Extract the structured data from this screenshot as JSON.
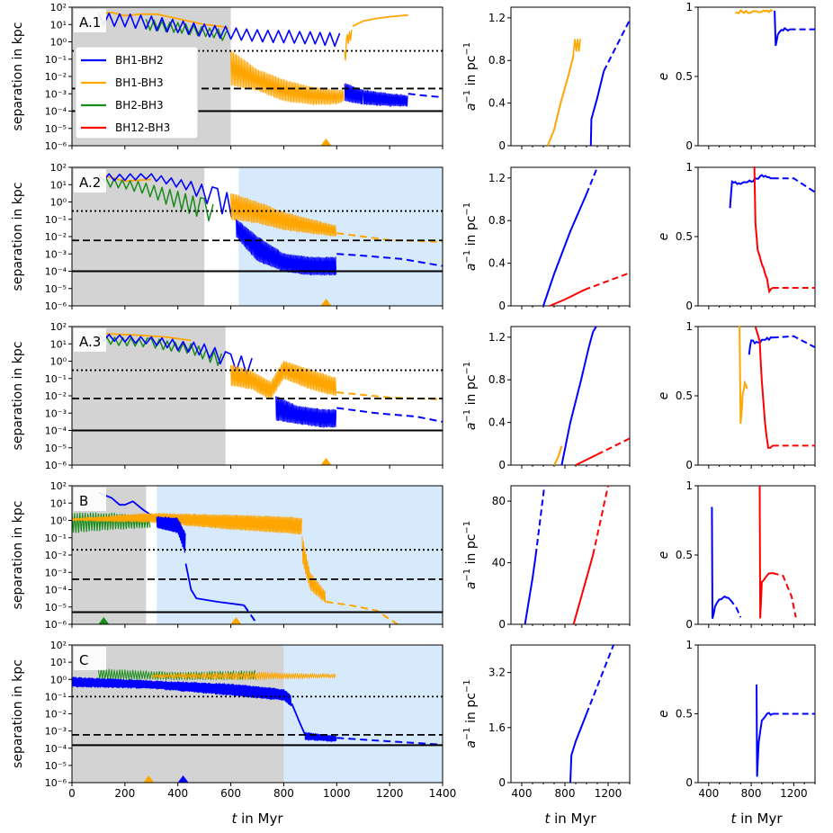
{
  "colors": {
    "BH1-BH2": "#0000ff",
    "BH1-BH3": "#ffa500",
    "BH2-BH3": "#1a8c1a",
    "BH12-BH3": "#ff0000",
    "gray": "#d3d3d3",
    "blue_bg": "#d6eafc"
  },
  "axis_labels": {
    "sep_ylabel": "separation in kpc",
    "a_ylabel_base": "a",
    "a_ylabel_sup": "−1",
    "a_ylabel_tail": " in pc",
    "a_ylabel_tail_sup": "−1",
    "e_ylabel": "e",
    "t_xlabel_italic": "t",
    "t_xlabel_rest": " in Myr"
  },
  "legend": [
    "BH1-BH2",
    "BH1-BH3",
    "BH2-BH3",
    "BH12-BH3"
  ],
  "chart_data": [
    {
      "type": "line",
      "panel": "A.1",
      "xlim": [
        0,
        1400
      ],
      "ylim_log": [
        -6,
        2
      ],
      "shaded_gray": [
        0,
        600
      ],
      "shaded_blue": null,
      "hlines": {
        "dotted": 0.3,
        "dashed": 0.002,
        "solid": 0.0001
      },
      "triangles": [
        {
          "x": 960,
          "color": "BH1-BH3"
        }
      ],
      "a_inv": {
        "ylim": [
          0,
          1.3
        ],
        "yticks": [
          0,
          0.4,
          0.8,
          1.2
        ],
        "series": [
          {
            "name": "BH1-BH3",
            "solid": [
              [
                640,
                0
              ],
              [
                700,
                0.15
              ],
              [
                760,
                0.4
              ],
              [
                830,
                0.65
              ],
              [
                880,
                0.85
              ]
            ],
            "spikes": [
              [
                880,
                0.85
              ],
              [
                890,
                1.0
              ]
            ],
            "dashed": null
          },
          {
            "name": "BH1-BH2",
            "solid": [
              [
                1040,
                0
              ],
              [
                1045,
                0.25
              ],
              [
                1100,
                0.45
              ],
              [
                1160,
                0.7
              ]
            ],
            "dashed": [
              [
                1160,
                0.7
              ],
              [
                1400,
                1.18
              ]
            ]
          }
        ]
      },
      "ecc": {
        "series": [
          {
            "name": "BH1-BH3",
            "solid": [
              [
                650,
                0.95
              ],
              [
                700,
                0.97
              ],
              [
                800,
                0.96
              ],
              [
                880,
                0.97
              ],
              [
                1000,
                0.97
              ]
            ],
            "dashed": null
          },
          {
            "name": "BH1-BH2",
            "solid": [
              [
                1020,
                0.97
              ],
              [
                1030,
                0.72
              ],
              [
                1050,
                0.8
              ],
              [
                1100,
                0.84
              ],
              [
                1160,
                0.84
              ]
            ],
            "dashed": [
              [
                1160,
                0.84
              ],
              [
                1400,
                0.84
              ]
            ]
          }
        ]
      }
    },
    {
      "type": "line",
      "panel": "A.2",
      "xlim": [
        0,
        1400
      ],
      "ylim_log": [
        -6,
        2
      ],
      "shaded_gray": [
        0,
        500
      ],
      "shaded_blue": [
        630,
        1400
      ],
      "hlines": {
        "dotted": 0.3,
        "dashed": 0.006,
        "solid": 0.0001
      },
      "triangles": [
        {
          "x": 960,
          "color": "BH1-BH3"
        }
      ],
      "a_inv": {
        "ylim": [
          0,
          1.3
        ],
        "yticks": [
          0,
          0.4,
          0.8,
          1.2
        ],
        "series": [
          {
            "name": "BH1-BH2",
            "solid": [
              [
                600,
                0
              ],
              [
                700,
                0.3
              ],
              [
                850,
                0.7
              ],
              [
                1000,
                1.05
              ]
            ],
            "spikes": null,
            "dashed": [
              [
                1000,
                1.05
              ],
              [
                1100,
                1.3
              ]
            ]
          },
          {
            "name": "BH12-BH3",
            "solid": [
              [
                660,
                0
              ],
              [
                800,
                0.06
              ],
              [
                980,
                0.15
              ]
            ],
            "spikes": null,
            "dashed": [
              [
                980,
                0.15
              ],
              [
                1400,
                0.31
              ]
            ]
          }
        ]
      },
      "ecc": {
        "series": [
          {
            "name": "BH1-BH2",
            "solid": [
              [
                600,
                0.7
              ],
              [
                620,
                0.9
              ],
              [
                700,
                0.88
              ],
              [
                800,
                0.9
              ],
              [
                900,
                0.94
              ],
              [
                1000,
                0.92
              ]
            ],
            "dashed": [
              [
                1000,
                0.92
              ],
              [
                1200,
                0.92
              ],
              [
                1400,
                0.82
              ]
            ]
          },
          {
            "name": "BH12-BH3",
            "solid": [
              [
                830,
                1.0
              ],
              [
                840,
                0.6
              ],
              [
                860,
                0.4
              ],
              [
                900,
                0.3
              ],
              [
                950,
                0.2
              ],
              [
                970,
                0.1
              ],
              [
                1000,
                0.13
              ]
            ],
            "dashed": [
              [
                1000,
                0.13
              ],
              [
                1400,
                0.13
              ]
            ]
          }
        ]
      }
    },
    {
      "type": "line",
      "panel": "A.3",
      "xlim": [
        0,
        1400
      ],
      "ylim_log": [
        -6,
        2
      ],
      "shaded_gray": [
        0,
        580
      ],
      "shaded_blue": null,
      "hlines": {
        "dotted": 0.3,
        "dashed": 0.007,
        "solid": 0.0001
      },
      "triangles": [
        {
          "x": 960,
          "color": "BH1-BH3"
        }
      ],
      "a_inv": {
        "ylim": [
          0,
          1.3
        ],
        "yticks": [
          0,
          0.4,
          0.8,
          1.2
        ],
        "series": [
          {
            "name": "BH1-BH3",
            "solid": [
              [
                700,
                0
              ],
              [
                740,
                0.08
              ],
              [
                770,
                0.18
              ]
            ],
            "spikes": null,
            "dashed": null
          },
          {
            "name": "BH1-BH2",
            "solid": [
              [
                770,
                0
              ],
              [
                850,
                0.4
              ],
              [
                950,
                0.8
              ],
              [
                1020,
                1.1
              ],
              [
                1060,
                1.25
              ]
            ],
            "spikes": null,
            "dashed": [
              [
                1060,
                1.25
              ],
              [
                1090,
                1.32
              ]
            ]
          },
          {
            "name": "BH12-BH3",
            "solid": [
              [
                900,
                0
              ],
              [
                1000,
                0.05
              ],
              [
                1100,
                0.1
              ]
            ],
            "spikes": null,
            "dashed": [
              [
                1100,
                0.1
              ],
              [
                1400,
                0.25
              ]
            ]
          }
        ]
      },
      "ecc": {
        "series": [
          {
            "name": "BH1-BH3",
            "solid": [
              [
                690,
                1.0
              ],
              [
                700,
                0.3
              ],
              [
                720,
                0.5
              ],
              [
                740,
                0.6
              ],
              [
                760,
                0.55
              ]
            ],
            "dashed": null
          },
          {
            "name": "BH1-BH2",
            "solid": [
              [
                780,
                0.8
              ],
              [
                800,
                0.9
              ],
              [
                850,
                0.88
              ],
              [
                900,
                0.9
              ],
              [
                1000,
                0.92
              ]
            ],
            "dashed": [
              [
                1000,
                0.92
              ],
              [
                1200,
                0.93
              ],
              [
                1400,
                0.85
              ]
            ]
          },
          {
            "name": "BH12-BH3",
            "solid": [
              [
                840,
                1.0
              ],
              [
                880,
                0.9
              ],
              [
                900,
                0.6
              ],
              [
                930,
                0.3
              ],
              [
                960,
                0.12
              ],
              [
                1000,
                0.14
              ]
            ],
            "dashed": [
              [
                1000,
                0.14
              ],
              [
                1400,
                0.14
              ]
            ]
          }
        ]
      }
    },
    {
      "type": "line",
      "panel": "B",
      "xlim": [
        0,
        1400
      ],
      "ylim_log": [
        -6,
        2
      ],
      "shaded_gray": [
        0,
        280
      ],
      "shaded_blue": [
        320,
        1400
      ],
      "hlines": {
        "dotted": 0.02,
        "dashed": 0.0004,
        "solid": 5e-06
      },
      "triangles": [
        {
          "x": 120,
          "color": "BH2-BH3"
        },
        {
          "x": 620,
          "color": "BH1-BH3"
        }
      ],
      "a_inv": {
        "ylim": [
          0,
          90
        ],
        "yticks": [
          0,
          40,
          80
        ],
        "series": [
          {
            "name": "BH1-BH2",
            "solid": [
              [
                430,
                0
              ],
              [
                500,
                30
              ],
              [
                530,
                45
              ]
            ],
            "spikes": null,
            "dashed": [
              [
                530,
                45
              ],
              [
                610,
                90
              ]
            ]
          },
          {
            "name": "BH12-BH3",
            "solid": [
              [
                880,
                0
              ],
              [
                1000,
                30
              ],
              [
                1060,
                45
              ]
            ],
            "spikes": null,
            "dashed": [
              [
                1060,
                45
              ],
              [
                1200,
                90
              ]
            ]
          }
        ]
      },
      "ecc": {
        "series": [
          {
            "name": "BH1-BH2",
            "solid": [
              [
                430,
                0.85
              ],
              [
                435,
                0.05
              ],
              [
                460,
                0.12
              ],
              [
                500,
                0.18
              ],
              [
                550,
                0.2
              ],
              [
                600,
                0.18
              ]
            ],
            "dashed": [
              [
                600,
                0.18
              ],
              [
                660,
                0.12
              ],
              [
                700,
                0.05
              ]
            ]
          },
          {
            "name": "BH12-BH3",
            "solid": [
              [
                880,
                1.0
              ],
              [
                885,
                0.05
              ],
              [
                900,
                0.3
              ],
              [
                950,
                0.36
              ],
              [
                1000,
                0.37
              ]
            ],
            "dashed": [
              [
                1000,
                0.37
              ],
              [
                1100,
                0.35
              ],
              [
                1180,
                0.2
              ],
              [
                1220,
                0.05
              ]
            ]
          }
        ]
      }
    },
    {
      "type": "line",
      "panel": "C",
      "xlim": [
        0,
        1400
      ],
      "ylim_log": [
        -6,
        2
      ],
      "shaded_gray": [
        0,
        800
      ],
      "shaded_blue": [
        800,
        1400
      ],
      "hlines": {
        "dotted": 0.1,
        "dashed": 0.0006,
        "solid": 0.00015
      },
      "triangles": [
        {
          "x": 290,
          "color": "BH1-BH3"
        },
        {
          "x": 420,
          "color": "BH1-BH2"
        }
      ],
      "a_inv": {
        "ylim": [
          0,
          4
        ],
        "yticks": [
          0,
          1.6,
          3.2
        ],
        "series": [
          {
            "name": "BH1-BH2",
            "solid": [
              [
                850,
                0
              ],
              [
                860,
                0.8
              ],
              [
                900,
                1.2
              ],
              [
                1000,
                2.0
              ]
            ],
            "spikes": null,
            "dashed": [
              [
                1000,
                2.0
              ],
              [
                1250,
                4.0
              ]
            ]
          }
        ]
      },
      "ecc": {
        "series": [
          {
            "name": "BH1-BH2",
            "solid": [
              [
                850,
                0.72
              ],
              [
                855,
                0.05
              ],
              [
                870,
                0.3
              ],
              [
                900,
                0.45
              ],
              [
                950,
                0.5
              ],
              [
                1000,
                0.5
              ]
            ],
            "dashed": [
              [
                1000,
                0.5
              ],
              [
                1400,
                0.5
              ]
            ]
          }
        ]
      }
    }
  ],
  "panel_tick_labels": {
    "sep_y": [
      "10⁻⁶",
      "10⁻⁵",
      "10⁻⁴",
      "10⁻³",
      "10⁻²",
      "10⁻¹",
      "10⁰",
      "10¹",
      "10²"
    ],
    "t_x": [
      "0",
      "200",
      "400",
      "600",
      "800",
      "1000",
      "1200",
      "1400"
    ],
    "small_x": [
      "400",
      "800",
      "1200"
    ],
    "e_y": [
      "0",
      "0.5",
      "1"
    ]
  }
}
